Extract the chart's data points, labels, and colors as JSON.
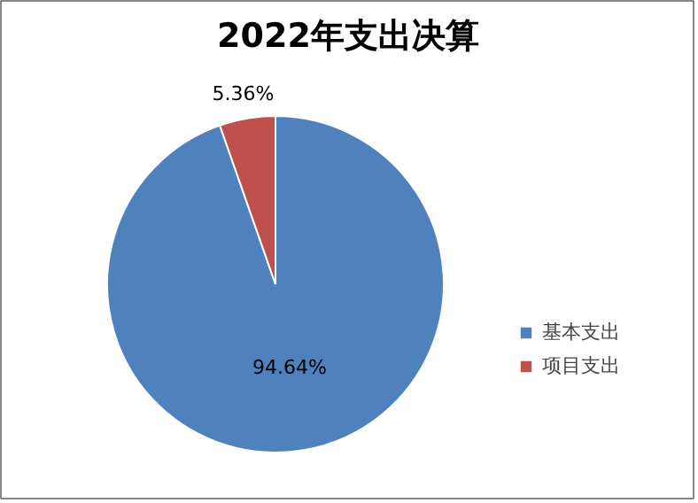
{
  "chart_data": {
    "type": "pie",
    "title": "2022年支出决算",
    "categories": [
      "基本支出",
      "项目支出"
    ],
    "values": [
      94.64,
      5.36
    ],
    "colors": [
      "#4f81bd",
      "#c0504d"
    ],
    "value_labels": [
      "94.64%",
      "5.36%"
    ],
    "legend": "right"
  }
}
